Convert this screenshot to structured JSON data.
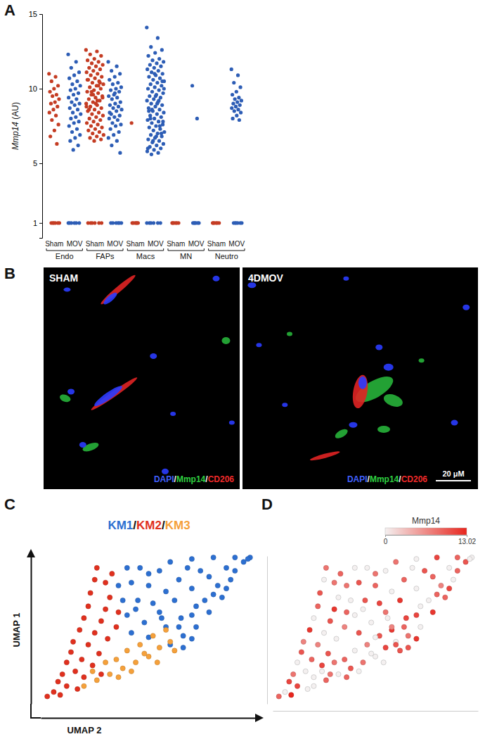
{
  "chart_data": [
    {
      "panel_label": "A",
      "type": "strip",
      "ylabel": "Mmp14 (AU)",
      "categories": [
        "Sham",
        "MOV",
        "Sham",
        "MOV",
        "Sham",
        "MOV",
        "Sham",
        "MOV",
        "Sham",
        "MOV"
      ],
      "group_labels": [
        "Endo",
        "FAPs",
        "Macs",
        "MN",
        "Neutro"
      ],
      "colors": [
        "#c43c23",
        "#2d5db5",
        "#c43c23",
        "#2d5db5",
        "#c43c23",
        "#2d5db5",
        "#c43c23",
        "#2d5db5",
        "#c43c23",
        "#2d5db5"
      ],
      "ylim": [
        0,
        15
      ],
      "yticks": [
        1,
        5,
        10,
        15
      ],
      "values": [
        [
          11.0,
          10.8,
          10.5,
          10.2,
          10.0,
          9.8,
          9.6,
          9.5,
          9.3,
          9.1,
          9.0,
          8.8,
          8.6,
          8.4,
          8.2,
          7.9,
          7.6,
          7.2,
          6.8,
          6.3,
          1,
          1,
          1,
          1,
          1,
          1
        ],
        [
          12.3,
          11.8,
          11.4,
          11.1,
          10.9,
          10.7,
          10.5,
          10.3,
          10.2,
          10.0,
          9.9,
          9.7,
          9.6,
          9.4,
          9.3,
          9.1,
          9.0,
          8.9,
          8.7,
          8.6,
          8.4,
          8.3,
          8.1,
          8.0,
          7.8,
          7.7,
          7.5,
          7.3,
          7.1,
          6.9,
          6.7,
          6.5,
          6.2,
          5.9,
          1,
          1,
          1,
          1,
          1,
          1
        ],
        [
          12.6,
          12.5,
          12.3,
          12.2,
          12.0,
          11.9,
          11.8,
          11.7,
          11.6,
          11.5,
          11.4,
          11.3,
          11.2,
          11.1,
          11.0,
          10.9,
          10.8,
          10.7,
          10.6,
          10.5,
          10.4,
          10.3,
          10.2,
          10.1,
          10.0,
          9.9,
          9.8,
          9.7,
          9.6,
          9.5,
          9.4,
          9.3,
          9.2,
          9.1,
          9.0,
          8.9,
          8.8,
          8.7,
          8.6,
          8.5,
          8.4,
          8.3,
          8.2,
          8.1,
          8.0,
          7.9,
          7.8,
          7.7,
          7.6,
          7.5,
          7.4,
          7.3,
          7.2,
          7.1,
          7.0,
          6.9,
          6.8,
          6.7,
          6.6,
          6.5,
          10.6,
          10.2,
          9.8,
          9.4,
          9.0,
          8.6,
          10.4,
          9.6,
          8.8,
          9.2,
          1,
          1,
          1,
          1,
          1,
          1
        ],
        [
          11.8,
          11.5,
          11.2,
          11.0,
          10.8,
          10.6,
          10.4,
          10.3,
          10.1,
          10.0,
          9.9,
          9.8,
          9.6,
          9.5,
          9.4,
          9.3,
          9.1,
          9.0,
          8.9,
          8.8,
          8.7,
          8.6,
          8.5,
          8.3,
          8.2,
          8.1,
          8.0,
          7.9,
          7.7,
          7.6,
          7.5,
          7.3,
          7.1,
          6.9,
          6.7,
          6.5,
          6.2,
          5.7,
          9.7,
          8.4,
          1,
          1,
          1,
          1,
          1,
          1
        ],
        [
          7.7,
          1,
          1,
          1,
          1,
          1,
          1
        ],
        [
          14.1,
          13.4,
          12.8,
          12.6,
          12.4,
          12.2,
          12.0,
          11.9,
          11.8,
          11.7,
          11.6,
          11.5,
          11.4,
          11.3,
          11.2,
          11.1,
          11.0,
          10.9,
          10.8,
          10.7,
          10.6,
          10.5,
          10.4,
          10.3,
          10.2,
          10.1,
          10.0,
          9.9,
          9.8,
          9.7,
          9.6,
          9.5,
          9.4,
          9.3,
          9.2,
          9.1,
          9.0,
          8.9,
          8.8,
          8.7,
          8.6,
          8.5,
          8.4,
          8.3,
          8.2,
          8.1,
          8.0,
          7.9,
          7.8,
          7.7,
          7.6,
          7.5,
          7.4,
          7.3,
          7.2,
          7.1,
          7.0,
          6.9,
          6.8,
          6.7,
          6.6,
          6.5,
          6.4,
          6.3,
          6.2,
          6.1,
          6.0,
          5.9,
          5.8,
          5.7,
          5.6,
          10.5,
          9.5,
          8.5,
          7.5,
          6.5,
          10.0,
          9.0,
          8.0,
          7.0,
          11.0,
          6.0,
          9.2,
          8.6,
          7.8,
          6.8,
          1,
          1,
          1,
          1,
          1,
          1
        ],
        [
          1,
          1,
          1,
          1,
          1,
          1
        ],
        [
          10.2,
          8.0,
          1,
          1,
          1,
          1,
          1,
          1
        ],
        [
          1,
          1,
          1,
          1,
          1,
          1
        ],
        [
          11.3,
          10.9,
          10.4,
          10.1,
          9.8,
          9.6,
          9.4,
          9.3,
          9.2,
          9.1,
          9.0,
          8.9,
          8.8,
          8.7,
          8.6,
          8.5,
          8.4,
          8.2,
          8.0,
          7.9,
          1,
          1,
          1,
          1,
          1,
          1
        ]
      ]
    },
    {
      "panel_label": "C",
      "type": "scatter",
      "title": "KM1/KM2/KM3",
      "xlabel": "UMAP 2",
      "ylabel": "UMAP 1",
      "xlim": [
        0,
        100
      ],
      "ylim": [
        0,
        100
      ],
      "tick_labels": false,
      "series": [
        {
          "name": "KM1",
          "color": "#2c6fd1",
          "x": [
            40,
            45,
            50,
            55,
            60,
            70,
            80,
            90,
            97,
            42,
            48,
            55,
            62,
            70,
            78,
            86,
            94,
            50,
            58,
            65,
            72,
            80,
            88,
            60,
            66,
            72,
            78,
            84,
            38,
            42,
            46,
            36,
            52,
            58,
            64,
            68,
            74,
            82,
            76,
            70,
            64,
            56,
            50,
            44,
            66,
            70,
            40,
            90,
            96,
            86
          ],
          "y": [
            60,
            70,
            80,
            90,
            96,
            98,
            99,
            99,
            99,
            48,
            55,
            62,
            70,
            78,
            86,
            92,
            96,
            45,
            52,
            58,
            66,
            74,
            84,
            40,
            46,
            52,
            62,
            72,
            70,
            82,
            92,
            80,
            68,
            76,
            84,
            92,
            90,
            80,
            70,
            60,
            52,
            58,
            88,
            64,
            38,
            44,
            92,
            90,
            98,
            78
          ]
        },
        {
          "name": "KM2",
          "color": "#e0301e",
          "x": [
            3,
            6,
            8,
            10,
            12,
            14,
            15,
            18,
            20,
            22,
            23,
            25,
            26,
            12,
            16,
            19,
            22,
            25,
            28,
            30,
            32,
            30,
            33,
            20,
            24,
            27,
            31,
            35,
            36,
            9,
            17,
            28
          ],
          "y": [
            5,
            8,
            15,
            20,
            28,
            35,
            42,
            50,
            58,
            66,
            75,
            84,
            92,
            12,
            22,
            30,
            40,
            48,
            56,
            64,
            72,
            82,
            88,
            18,
            26,
            34,
            44,
            52,
            62,
            6,
            10,
            20
          ]
        },
        {
          "name": "KM3",
          "color": "#f5a03a",
          "x": [
            20,
            26,
            32,
            38,
            44,
            50,
            55,
            60,
            35,
            40,
            46,
            52,
            42,
            30,
            58,
            48,
            36,
            24,
            62,
            54
          ],
          "y": [
            12,
            16,
            20,
            24,
            28,
            32,
            38,
            42,
            30,
            36,
            40,
            46,
            22,
            28,
            50,
            34,
            18,
            22,
            36,
            28
          ]
        }
      ]
    },
    {
      "panel_label": "D",
      "type": "scatter",
      "xlim": [
        0,
        100
      ],
      "ylim": [
        0,
        100
      ],
      "tick_labels": false,
      "x": [
        3,
        6,
        8,
        10,
        12,
        14,
        15,
        18,
        20,
        22,
        23,
        25,
        26,
        12,
        16,
        19,
        22,
        25,
        28,
        30,
        32,
        30,
        33,
        20,
        24,
        27,
        31,
        35,
        36,
        9,
        17,
        28,
        20,
        26,
        32,
        38,
        44,
        50,
        55,
        60,
        35,
        40,
        46,
        52,
        42,
        30,
        58,
        48,
        36,
        24,
        62,
        54,
        40,
        45,
        50,
        55,
        60,
        70,
        80,
        90,
        97,
        42,
        48,
        55,
        62,
        70,
        78,
        86,
        94,
        50,
        58,
        65,
        72,
        80,
        88,
        60,
        66,
        72,
        78,
        84,
        38,
        42,
        46,
        36,
        52,
        58,
        64,
        68,
        74,
        82,
        76,
        70,
        64,
        56,
        50,
        44,
        66,
        70,
        40,
        90,
        96,
        86
      ],
      "y": [
        5,
        8,
        15,
        20,
        28,
        35,
        42,
        50,
        58,
        66,
        75,
        84,
        92,
        12,
        22,
        30,
        40,
        48,
        56,
        64,
        72,
        82,
        88,
        18,
        26,
        34,
        44,
        52,
        62,
        6,
        10,
        20,
        12,
        16,
        20,
        24,
        28,
        32,
        38,
        42,
        30,
        36,
        40,
        46,
        22,
        28,
        50,
        34,
        18,
        22,
        36,
        28,
        60,
        70,
        80,
        90,
        96,
        98,
        99,
        99,
        99,
        48,
        55,
        62,
        70,
        78,
        86,
        92,
        96,
        45,
        52,
        58,
        66,
        74,
        84,
        40,
        46,
        52,
        62,
        72,
        70,
        82,
        92,
        80,
        68,
        76,
        84,
        92,
        90,
        80,
        70,
        60,
        52,
        58,
        88,
        64,
        38,
        44,
        92,
        90,
        98,
        78
      ],
      "values": [
        9,
        0,
        11,
        8,
        0,
        10,
        7,
        12,
        0,
        9,
        10,
        0,
        8,
        11,
        0,
        9,
        7,
        0,
        10,
        12,
        0,
        8,
        9,
        0,
        11,
        10,
        0,
        7,
        9,
        13.02,
        0,
        8,
        0,
        9,
        0,
        10,
        8,
        0,
        11,
        0,
        9,
        0,
        7,
        10,
        0,
        8,
        12,
        0,
        9,
        0,
        10,
        0,
        0,
        10,
        9,
        0,
        8,
        0,
        11,
        9,
        0,
        10,
        0,
        8,
        12,
        0,
        9,
        0,
        10,
        0,
        7,
        11,
        0,
        9,
        0,
        10,
        8,
        0,
        12,
        9,
        0,
        10,
        0,
        8,
        11,
        0,
        9,
        0,
        10,
        7,
        0,
        11,
        9,
        0,
        8,
        0,
        10,
        12,
        0,
        9,
        0,
        11
      ],
      "colorbar": {
        "title": "Mmp14",
        "range": [
          0,
          13.02
        ],
        "ticks": [
          0,
          13.02
        ],
        "colors": [
          "#f4f0f0",
          "#e8261e"
        ]
      }
    }
  ],
  "micrograph_panel": {
    "panel_label": "B",
    "images": [
      {
        "title": "SHAM",
        "stain_label": "DAPI/Mmp14/CD206",
        "stain_colors": [
          "#4060ff",
          "#2fd040",
          "#f02a2a"
        ]
      },
      {
        "title": "4DMOV",
        "stain_label": "DAPI/Mmp14/CD206",
        "stain_colors": [
          "#4060ff",
          "#2fd040",
          "#f02a2a"
        ],
        "scale_bar": "20 μM"
      }
    ]
  }
}
